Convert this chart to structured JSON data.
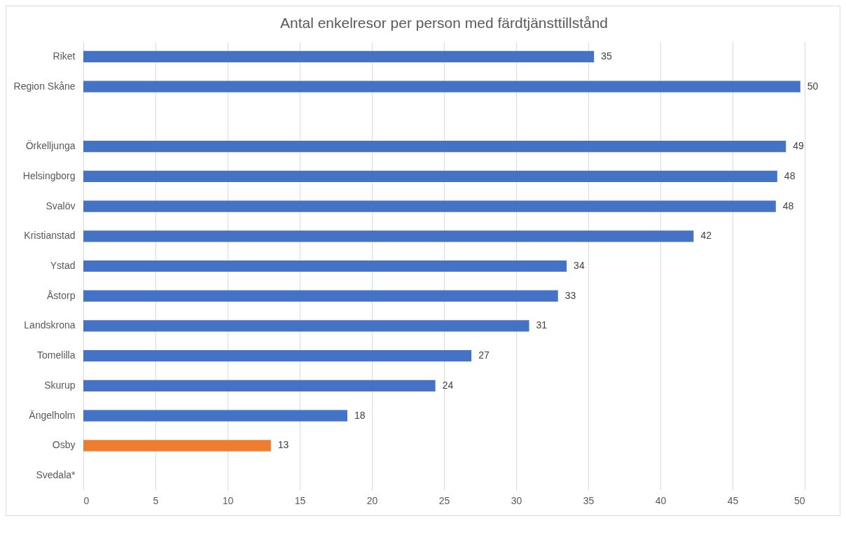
{
  "chart_data": {
    "type": "bar",
    "orientation": "horizontal",
    "title": "Antal enkelresor per person med färdtjänsttillstånd",
    "categories": [
      "Riket",
      "Region Skåne",
      null,
      "Örkelljunga",
      "Helsingborg",
      "Svalöv",
      "Kristianstad",
      "Ystad",
      "Åstorp",
      "Landskrona",
      "Tomelilla",
      "Skurup",
      "Ängelholm",
      "Osby",
      "Svedala*"
    ],
    "values": [
      35.4,
      49.7,
      null,
      48.7,
      48.1,
      48.0,
      42.3,
      33.5,
      32.9,
      30.9,
      26.9,
      24.4,
      18.3,
      13.0,
      null
    ],
    "value_labels": [
      "35",
      "50",
      null,
      "49",
      "48",
      "48",
      "42",
      "34",
      "33",
      "31",
      "27",
      "24",
      "18",
      "13",
      null
    ],
    "colors": [
      "#4472c4",
      "#4472c4",
      "#4472c4",
      "#4472c4",
      "#4472c4",
      "#4472c4",
      "#4472c4",
      "#4472c4",
      "#4472c4",
      "#4472c4",
      "#4472c4",
      "#4472c4",
      "#4472c4",
      "#ed7d31",
      "#4472c4"
    ],
    "xlim": [
      0,
      50
    ],
    "xticks": [
      0,
      5,
      10,
      15,
      20,
      25,
      30,
      35,
      40,
      45,
      50
    ],
    "grid": "x"
  }
}
